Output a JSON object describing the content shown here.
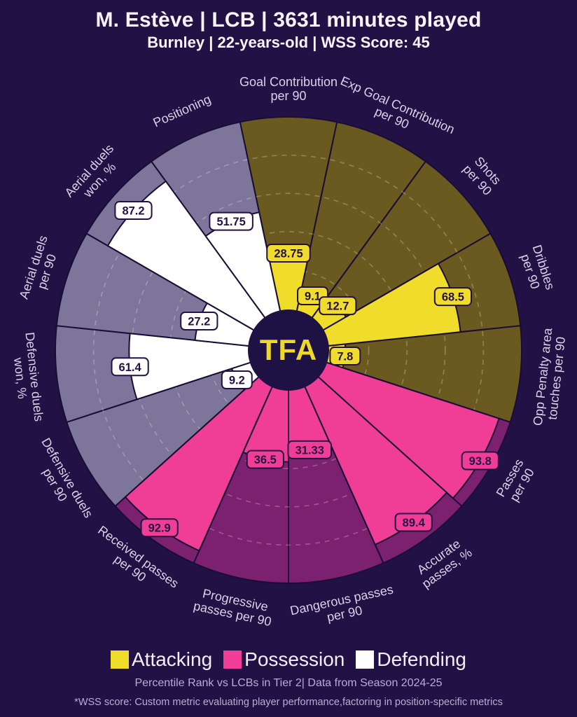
{
  "header": {
    "title": "M. Estève | LCB | 3631 minutes played",
    "subtitle": "Burnley | 22-years-old | WSS Score: 45"
  },
  "center_logo": {
    "text": "TFA"
  },
  "legend": {
    "items": [
      {
        "id": "attacking",
        "label": "Attacking",
        "color": "#f0dd2b"
      },
      {
        "id": "possession",
        "label": "Possession",
        "color": "#f03e96"
      },
      {
        "id": "defending",
        "label": "Defending",
        "color": "#ffffff"
      }
    ]
  },
  "footer": {
    "line1": "Percentile Rank vs LCBs in Tier 2| Data from Season 2024-25",
    "line2": "*WSS score: Custom metric evaluating player performance,factoring in position-specific metrics"
  },
  "chart_data": {
    "type": "pizza-radar",
    "unit": "percentile",
    "range": [
      0,
      100
    ],
    "gridlines": [
      20,
      40,
      60,
      80
    ],
    "grid_style": "dashed",
    "start_angle_deg": 90,
    "direction": "clockwise",
    "colors": {
      "background": "#211144",
      "outline": "#190d36",
      "center_circle": "#1e1143",
      "logo_text": "#efd829",
      "category_label": "#d9d3ea",
      "value_box_text": "#251046",
      "attacking": {
        "bright": "#f0dd2b",
        "dark": "#6b5a20"
      },
      "possession": {
        "bright": "#f03e96",
        "dark": "#7c2170"
      },
      "defending": {
        "bright": "#ffffff",
        "dark": "#7e769a"
      }
    },
    "slices": [
      {
        "label": "Goal Contribution per 90",
        "label_lines": [
          "Goal Contribution",
          "per 90"
        ],
        "value": 28.75,
        "value_label": "28.75",
        "group": "attacking"
      },
      {
        "label": "Exp Goal Contribution per 90",
        "label_lines": [
          "Exp Goal Contribution",
          "per 90"
        ],
        "value": 9.1,
        "value_label": "9.1",
        "group": "attacking"
      },
      {
        "label": "Shots per 90",
        "label_lines": [
          "Shots",
          "per 90"
        ],
        "value": 12.7,
        "value_label": "12.7",
        "group": "attacking"
      },
      {
        "label": "Dribbles per 90",
        "label_lines": [
          "Dribbles",
          "per 90"
        ],
        "value": 68.5,
        "value_label": "68.5",
        "group": "attacking"
      },
      {
        "label": "Opp Penalty area touches per 90",
        "label_lines": [
          "Opp Penalty area",
          "touches per 90"
        ],
        "value": 7.8,
        "value_label": "7.8",
        "group": "attacking"
      },
      {
        "label": "Passes per 90",
        "label_lines": [
          "Passes",
          "per 90"
        ],
        "value": 93.8,
        "value_label": "93.8",
        "group": "possession"
      },
      {
        "label": "Accurate passes, %",
        "label_lines": [
          "Accurate",
          "passes, %"
        ],
        "value": 89.4,
        "value_label": "89.4",
        "group": "possession"
      },
      {
        "label": "Dangerous passes per 90",
        "label_lines": [
          "Dangerous passes",
          "per 90"
        ],
        "value": 31.33,
        "value_label": "31.33",
        "group": "possession"
      },
      {
        "label": "Progressive passes per 90",
        "label_lines": [
          "Progressive",
          "passes per 90"
        ],
        "value": 36.5,
        "value_label": "36.5",
        "group": "possession"
      },
      {
        "label": "Received passes per 90",
        "label_lines": [
          "Received passes",
          "per 90"
        ],
        "value": 92.9,
        "value_label": "92.9",
        "group": "possession"
      },
      {
        "label": "Defensive duels per 90",
        "label_lines": [
          "Defensive duels",
          "per 90"
        ],
        "value": 9.2,
        "value_label": "9.2",
        "group": "defending"
      },
      {
        "label": "Defensive duels won, %",
        "label_lines": [
          "Defensive duels",
          "won, %"
        ],
        "value": 61.4,
        "value_label": "61.4",
        "group": "defending"
      },
      {
        "label": "Aerial duels per 90",
        "label_lines": [
          "Aerial duels",
          "per 90"
        ],
        "value": 27.2,
        "value_label": "27.2",
        "group": "defending"
      },
      {
        "label": "Aerial duels won, %",
        "label_lines": [
          "Aerial duels",
          "won, %"
        ],
        "value": 87.2,
        "value_label": "87.2",
        "group": "defending"
      },
      {
        "label": "Positioning",
        "label_lines": [
          "Positioning"
        ],
        "value": 51.75,
        "value_label": "51.75",
        "group": "defending"
      }
    ]
  }
}
